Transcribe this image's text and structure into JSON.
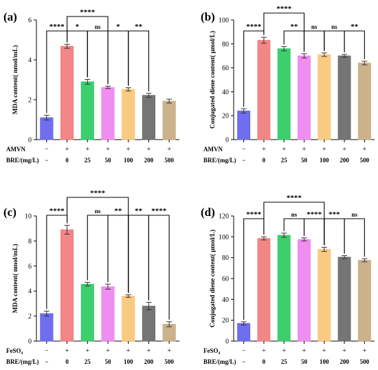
{
  "figure": {
    "title": "",
    "row_labels": {
      "top": {
        "agent": "AMVN",
        "dose": "BRE/(mg/L)"
      },
      "bottom": {
        "agent": "FeSO₄",
        "dose": "BRE/(mg/L)"
      }
    }
  },
  "bar_colors": [
    "#6666ee",
    "#f28080",
    "#33cc66",
    "#ee88ee",
    "#f9c77a",
    "#6e6e6e",
    "#c9ae85"
  ],
  "chart_data": [
    {
      "type": "bar",
      "panel": "(a)",
      "agent": "AMVN",
      "categories": [
        "−",
        "0",
        "25",
        "50",
        "100",
        "200",
        "500"
      ],
      "agent_signs": [
        "−",
        "+",
        "+",
        "+",
        "+",
        "+",
        "+"
      ],
      "values": [
        1.1,
        4.68,
        2.9,
        2.62,
        2.52,
        2.22,
        1.93
      ],
      "errors": [
        0.12,
        0.1,
        0.12,
        0.06,
        0.08,
        0.1,
        0.1
      ],
      "ylabel": "MDA content( nmol/mL)",
      "xlabel": "BRE/(mg/L)",
      "ylim": [
        0,
        6
      ],
      "yticks": [
        0,
        2,
        4,
        6
      ],
      "significance": [
        {
          "from": 1,
          "to": 3,
          "label": "****"
        },
        {
          "from": 0,
          "to": 1,
          "label": "****"
        },
        {
          "from": 1,
          "to": 2,
          "label": "*"
        },
        {
          "from": 2,
          "to": 3,
          "label": "ns"
        },
        {
          "from": 3,
          "to": 4,
          "label": "*"
        },
        {
          "from": 4,
          "to": 5,
          "label": "**"
        }
      ]
    },
    {
      "type": "bar",
      "panel": "(b)",
      "agent": "AMVN",
      "categories": [
        "−",
        "0",
        "25",
        "50",
        "100",
        "200",
        "500"
      ],
      "agent_signs": [
        "−",
        "+",
        "+",
        "+",
        "+",
        "+",
        "+"
      ],
      "values": [
        24,
        83,
        76,
        70,
        71,
        70,
        64
      ],
      "errors": [
        1.8,
        2.5,
        1.8,
        1.8,
        1.5,
        1.2,
        1.5
      ],
      "ylabel": "Conjugated diene content( μmol/L)",
      "xlabel": "BRE/(mg/L)",
      "ylim": [
        0,
        100
      ],
      "yticks": [
        0,
        20,
        40,
        60,
        80,
        100
      ],
      "significance": [
        {
          "from": 1,
          "to": 3,
          "label": "****"
        },
        {
          "from": 0,
          "to": 1,
          "label": "****"
        },
        {
          "from": 2,
          "to": 3,
          "label": "**"
        },
        {
          "from": 3,
          "to": 4,
          "label": "ns"
        },
        {
          "from": 4,
          "to": 5,
          "label": "ns"
        },
        {
          "from": 5,
          "to": 6,
          "label": "**"
        }
      ]
    },
    {
      "type": "bar",
      "panel": "(c)",
      "agent": "FeSO₄",
      "categories": [
        "−",
        "0",
        "25",
        "50",
        "100",
        "200",
        "500"
      ],
      "agent_signs": [
        "−",
        "+",
        "+",
        "+",
        "+",
        "+",
        "+"
      ],
      "values": [
        2.2,
        8.9,
        4.55,
        4.35,
        3.6,
        2.8,
        1.35
      ],
      "errors": [
        0.2,
        0.35,
        0.15,
        0.2,
        0.1,
        0.3,
        0.2
      ],
      "ylabel": "MDA content( nmol/mL)",
      "xlabel": "BRE/(mg/L)",
      "ylim": [
        0,
        10
      ],
      "yticks": [
        0,
        2,
        4,
        6,
        8,
        10
      ],
      "significance": [
        {
          "from": 1,
          "to": 4,
          "label": "****"
        },
        {
          "from": 0,
          "to": 1,
          "label": "****"
        },
        {
          "from": 2,
          "to": 3,
          "label": "ns"
        },
        {
          "from": 3,
          "to": 4,
          "label": "**"
        },
        {
          "from": 4,
          "to": 5,
          "label": "**"
        },
        {
          "from": 5,
          "to": 6,
          "label": "****"
        }
      ]
    },
    {
      "type": "bar",
      "panel": "(d)",
      "agent": "FeSO₄",
      "categories": [
        "−",
        "0",
        "25",
        "50",
        "100",
        "200",
        "500"
      ],
      "agent_signs": [
        "−",
        "+",
        "+",
        "+",
        "+",
        "+",
        "+"
      ],
      "values": [
        17,
        98.5,
        101.5,
        97.5,
        88,
        80.5,
        77.5
      ],
      "errors": [
        1.5,
        1.5,
        2,
        1.5,
        2,
        1.5,
        1.5
      ],
      "ylabel": "Conjugated diene content( μmol/L)",
      "xlabel": "BRE/(mg/L)",
      "ylim": [
        0,
        120
      ],
      "yticks": [
        0,
        20,
        40,
        60,
        80,
        100,
        120
      ],
      "significance": [
        {
          "from": 1,
          "to": 4,
          "label": "****"
        },
        {
          "from": 0,
          "to": 1,
          "label": "****"
        },
        {
          "from": 3,
          "to": 4,
          "label": "****"
        },
        {
          "from": 2,
          "to": 3,
          "label": "ns"
        },
        {
          "from": 4,
          "to": 5,
          "label": "***"
        },
        {
          "from": 5,
          "to": 6,
          "label": "ns"
        }
      ]
    }
  ]
}
